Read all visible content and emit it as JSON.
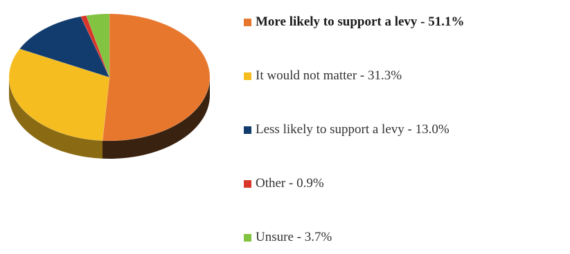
{
  "chart_data": {
    "type": "pie",
    "title": "",
    "three_d": true,
    "start_angle_deg": 90,
    "direction": "clockwise",
    "legend_position": "right",
    "slices": [
      {
        "label": "More likely to support a levy - 51.1%",
        "value": 51.1,
        "color": "#e8772e",
        "side_color": "#3a2210",
        "bold": true
      },
      {
        "label": "It would not matter - 31.3%",
        "value": 31.3,
        "color": "#f5bd1f",
        "side_color": "#8a6a12",
        "bold": false
      },
      {
        "label": "Less likely to support a levy - 13.0%",
        "value": 13.0,
        "color": "#123c6e",
        "side_color": "#0a2140",
        "bold": false
      },
      {
        "label": "Other - 0.9%",
        "value": 0.9,
        "color": "#d9362b",
        "side_color": "#7a1e18",
        "bold": false
      },
      {
        "label": "Unsure - 3.7%",
        "value": 3.7,
        "color": "#82c341",
        "side_color": "#4a7024",
        "bold": false
      }
    ]
  }
}
